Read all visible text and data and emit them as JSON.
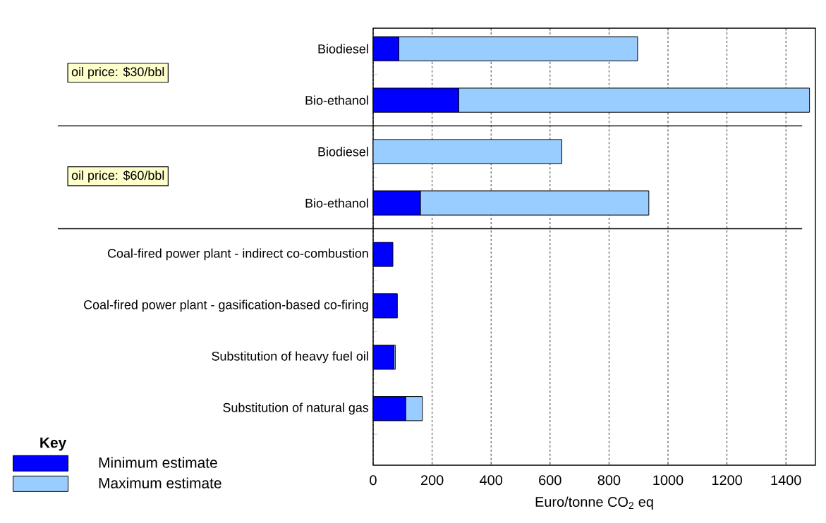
{
  "chart_data": {
    "type": "bar",
    "orientation": "horizontal",
    "stacked": true,
    "categories": [
      "Biodiesel",
      "Bio-ethanol",
      "Biodiesel",
      "Bio-ethanol",
      "Coal-fired power plant - indirect co-combustion",
      "Coal-fired power plant - gasification-based co-firing",
      "Substitution of heavy fuel oil",
      "Substitution of natural gas"
    ],
    "series": [
      {
        "name": "Minimum estimate",
        "color": "#0000ff",
        "values": [
          87,
          290,
          0,
          160,
          67,
          82,
          70,
          110
        ]
      },
      {
        "name": "Maximum estimate",
        "color": "#99ccff",
        "values": [
          810,
          1190,
          640,
          775,
          0,
          0,
          5,
          57
        ]
      }
    ],
    "xlabel": "Euro/tonne CO$_{2}$ eq",
    "legend_title": "Key",
    "legend": "bottom left",
    "xlim": [
      0,
      1500
    ],
    "xticks": [
      0,
      200,
      400,
      600,
      800,
      1000,
      1200,
      1400
    ],
    "grid": "x",
    "annotations": [
      "oil price: $30/bbl",
      "oil price: $60/bbl"
    ]
  }
}
